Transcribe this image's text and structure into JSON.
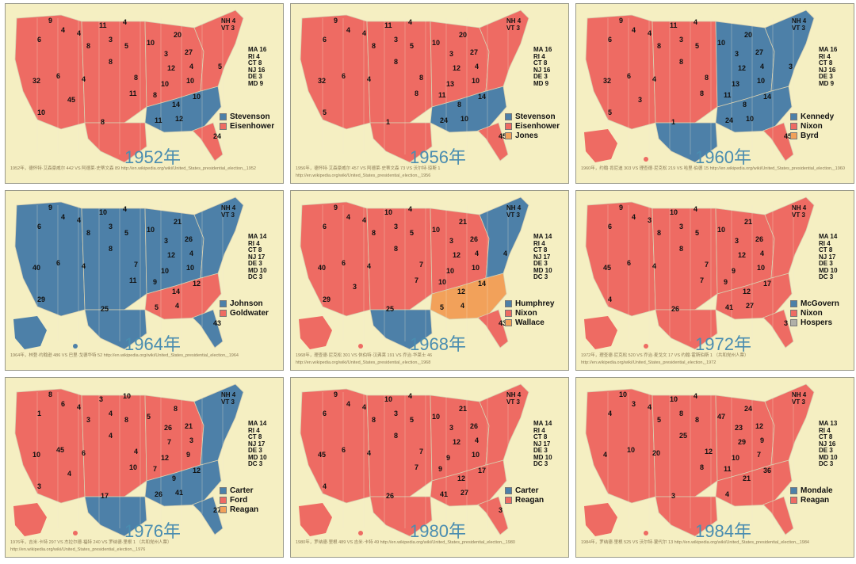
{
  "colors": {
    "dem": "#4d80a8",
    "rep": "#ee6b63",
    "third": "#f2a15a",
    "bg": "#f5efc2"
  },
  "panels": [
    {
      "year": "1952年",
      "legend": [
        [
          "Stevenson",
          "dem"
        ],
        [
          "Eisenhower",
          "rep"
        ]
      ],
      "caption": "1952年，德怀特·艾森豪威尔 442 VS 阿德莱·史蒂文森 89 http://en.wikipedia.org/wiki/United_States_presidential_election,_1952",
      "ne": [
        "NH 4",
        "VT 3"
      ],
      "ne2": [
        "MA 16",
        "RI 4",
        "CT 8",
        "NJ 16",
        "DE 3",
        "MD 9"
      ],
      "states": {
        "west": "rep",
        "plains": "rep",
        "midwest": "rep",
        "south": "dem",
        "texas": "rep",
        "northeast": "rep",
        "florida": "rep",
        "alaska": "none"
      },
      "numbers": [
        "9",
        "6",
        "4",
        "4",
        "11",
        "4",
        "3",
        "8",
        "5",
        "10",
        "32",
        "6",
        "4",
        "8",
        "20",
        "27",
        "3",
        "4",
        "8",
        "12",
        "10",
        "10",
        "11",
        "8",
        "14",
        "10",
        "8",
        "11",
        "12",
        "24",
        "10",
        "45",
        "5"
      ]
    },
    {
      "year": "1956年",
      "legend": [
        [
          "Stevenson",
          "dem"
        ],
        [
          "Eisenhower",
          "rep"
        ],
        [
          "Jones",
          "third"
        ]
      ],
      "caption": "1956年，德怀特·艾森豪威尔 457 VS 阿德莱·史蒂文森 73 VS 沃尔特·琼斯 1 http://en.wikipedia.org/wiki/United_States_presidential_election,_1956",
      "ne": [
        "NH 4",
        "VT 3"
      ],
      "ne2": [
        "MA 16",
        "RI 4",
        "CT 8",
        "NJ 16",
        "DE 3",
        "MD 9"
      ],
      "states": {
        "west": "rep",
        "plains": "rep",
        "midwest": "rep",
        "south": "dem",
        "texas": "rep",
        "northeast": "rep",
        "florida": "rep",
        "alaska": "none"
      },
      "numbers": [
        "9",
        "6",
        "4",
        "4",
        "11",
        "4",
        "3",
        "8",
        "5",
        "10",
        "32",
        "6",
        "4",
        "8",
        "20",
        "27",
        "3",
        "4",
        "8",
        "12",
        "13",
        "10",
        "8",
        "11",
        "8",
        "14",
        "1",
        "24",
        "10",
        "45",
        "5"
      ]
    },
    {
      "year": "1960年",
      "legend": [
        [
          "Kennedy",
          "dem"
        ],
        [
          "Nixon",
          "rep"
        ],
        [
          "Byrd",
          "third"
        ]
      ],
      "caption": "1960年，约翰·肯尼迪 303 VS 理查德·尼克松 219 VS 哈里·伯德 15 http://en.wikipedia.org/wiki/United_States_presidential_election,_1960",
      "ne": [
        "NH 4",
        "VT 3"
      ],
      "ne2": [
        "MA 16",
        "RI 4",
        "CT 8",
        "NJ 16",
        "DE 3",
        "MD 9"
      ],
      "states": {
        "west": "rep",
        "plains": "rep",
        "midwest": "dem",
        "south": "dem",
        "texas": "dem",
        "northeast": "dem",
        "florida": "rep",
        "alaska": "rep"
      },
      "numbers": [
        "9",
        "6",
        "4",
        "4",
        "11",
        "4",
        "3",
        "8",
        "5",
        "10",
        "32",
        "6",
        "4",
        "8",
        "20",
        "27",
        "3",
        "4",
        "8",
        "12",
        "13",
        "10",
        "8",
        "11",
        "8",
        "14",
        "1",
        "24",
        "10",
        "45",
        "5",
        "3",
        "3"
      ]
    },
    {
      "year": "1964年",
      "legend": [
        [
          "Johnson",
          "dem"
        ],
        [
          "Goldwater",
          "rep"
        ]
      ],
      "caption": "1964年，林登·约翰逊 486 VS 巴里·戈德华特 52 http://en.wikipedia.org/wiki/United_States_presidential_election,_1964",
      "ne": [
        "NH 4",
        "VT 3"
      ],
      "ne2": [
        "MA 14",
        "RI 4",
        "CT 8",
        "NJ 17",
        "DE 3",
        "MD 10",
        "DC 3"
      ],
      "states": {
        "west": "dem",
        "plains": "dem",
        "midwest": "dem",
        "south": "rep",
        "texas": "dem",
        "northeast": "dem",
        "florida": "dem",
        "alaska": "dem"
      },
      "numbers": [
        "9",
        "6",
        "4",
        "4",
        "10",
        "4",
        "3",
        "8",
        "5",
        "10",
        "40",
        "6",
        "4",
        "8",
        "21",
        "26",
        "3",
        "4",
        "7",
        "12",
        "10",
        "10",
        "11",
        "9",
        "14",
        "12",
        "25",
        "5",
        "4",
        "43",
        "29"
      ]
    },
    {
      "year": "1968年",
      "legend": [
        [
          "Humphrey",
          "dem"
        ],
        [
          "Nixon",
          "rep"
        ],
        [
          "Wallace",
          "third"
        ]
      ],
      "caption": "1968年，理查德·尼克松 301 VS 休伯特·汉弗莱 191 VS 乔治·华莱士 46 http://en.wikipedia.org/wiki/United_States_presidential_election,_1968",
      "ne": [
        "NH 4",
        "VT 3"
      ],
      "ne2": [
        "MA 14",
        "RI 4",
        "CT 8",
        "NJ 17",
        "DE 3",
        "MD 10",
        "DC 3"
      ],
      "states": {
        "west": "rep",
        "plains": "rep",
        "midwest": "rep",
        "south": "third",
        "texas": "dem",
        "northeast": "dem",
        "florida": "rep",
        "alaska": "rep"
      },
      "numbers": [
        "9",
        "6",
        "4",
        "4",
        "10",
        "4",
        "3",
        "8",
        "5",
        "10",
        "40",
        "6",
        "4",
        "8",
        "21",
        "26",
        "3",
        "4",
        "7",
        "12",
        "10",
        "10",
        "7",
        "10",
        "12",
        "14",
        "25",
        "5",
        "4",
        "43",
        "29",
        "3",
        "4"
      ]
    },
    {
      "year": "1972年",
      "legend": [
        [
          "McGovern",
          "dem"
        ],
        [
          "Nixon",
          "rep"
        ],
        [
          "Hospers",
          "gray"
        ]
      ],
      "caption": "1972年，理查德·尼克松 520 VS 乔治·麦戈文 17 VS 约翰·霍斯珀斯 1 （共和党州人票） http://en.wikipedia.org/wiki/United_States_presidential_election,_1972",
      "ne": [
        "NH 4",
        "VT 3"
      ],
      "ne2": [
        "MA 14",
        "RI 4",
        "CT 8",
        "NJ 17",
        "DE 3",
        "MD 10",
        "DC 3"
      ],
      "states": {
        "west": "rep",
        "plains": "rep",
        "midwest": "rep",
        "south": "rep",
        "texas": "rep",
        "northeast": "rep",
        "florida": "rep",
        "alaska": "rep"
      },
      "numbers": [
        "9",
        "6",
        "4",
        "3",
        "10",
        "4",
        "3",
        "8",
        "5",
        "10",
        "45",
        "6",
        "4",
        "8",
        "21",
        "26",
        "3",
        "4",
        "7",
        "12",
        "9",
        "10",
        "7",
        "9",
        "12",
        "17",
        "26",
        "41",
        "27",
        "3",
        "4"
      ]
    },
    {
      "year": "1976年",
      "legend": [
        [
          "Carter",
          "dem"
        ],
        [
          "Ford",
          "rep"
        ],
        [
          "Reagan",
          "third"
        ]
      ],
      "caption": "1976年，吉米·卡特 297 VS 杰拉尔德·福特 240 VS 罗纳德·里根 1 （共和党州人票） http://en.wikipedia.org/wiki/United_States_presidential_election,_1976",
      "ne": [
        "NH 4",
        "VT 3"
      ],
      "ne2": [
        "MA 14",
        "RI 4",
        "CT 8",
        "NJ 17",
        "DE 3",
        "MD 10",
        "DC 3"
      ],
      "states": {
        "west": "rep",
        "plains": "rep",
        "midwest": "rep",
        "south": "dem",
        "texas": "dem",
        "northeast": "dem",
        "florida": "dem",
        "alaska": "rep"
      },
      "numbers": [
        "8",
        "1",
        "6",
        "4",
        "3",
        "10",
        "4",
        "3",
        "8",
        "5",
        "10",
        "45",
        "6",
        "4",
        "8",
        "21",
        "26",
        "3",
        "4",
        "7",
        "12",
        "9",
        "10",
        "7",
        "9",
        "12",
        "17",
        "26",
        "41",
        "27",
        "3",
        "4"
      ]
    },
    {
      "year": "1980年",
      "legend": [
        [
          "Carter",
          "dem"
        ],
        [
          "Reagan",
          "rep"
        ]
      ],
      "caption": "1980年，罗纳德·里根 489 VS 吉米·卡特 49 http://en.wikipedia.org/wiki/United_States_presidential_election,_1980",
      "ne": [
        "NH 4",
        "VT 3"
      ],
      "ne2": [
        "MA 14",
        "RI 4",
        "CT 8",
        "NJ 17",
        "DE 3",
        "MD 10",
        "DC 3"
      ],
      "states": {
        "west": "rep",
        "plains": "rep",
        "midwest": "rep",
        "south": "rep",
        "texas": "rep",
        "northeast": "rep",
        "florida": "rep",
        "alaska": "rep"
      },
      "numbers": [
        "9",
        "6",
        "4",
        "4",
        "10",
        "4",
        "3",
        "8",
        "5",
        "10",
        "45",
        "6",
        "4",
        "8",
        "21",
        "26",
        "3",
        "4",
        "7",
        "12",
        "9",
        "10",
        "7",
        "9",
        "12",
        "17",
        "26",
        "41",
        "27",
        "3",
        "4"
      ]
    },
    {
      "year": "1984年",
      "legend": [
        [
          "Mondale",
          "dem"
        ],
        [
          "Reagan",
          "rep"
        ]
      ],
      "caption": "1984年，罗纳德·里根 525 VS 沃尔特·蒙代尔 13 http://en.wikipedia.org/wiki/United_States_presidential_election,_1984",
      "ne": [
        "NH 4",
        "VT 3"
      ],
      "ne2": [
        "MA 13",
        "RI 4",
        "CT 8",
        "NJ 16",
        "DE 3",
        "MD 10",
        "DC 3"
      ],
      "states": {
        "west": "rep",
        "plains": "rep",
        "midwest": "rep",
        "south": "rep",
        "texas": "rep",
        "northeast": "rep",
        "florida": "rep",
        "alaska": "rep"
      },
      "numbers": [
        "10",
        "4",
        "3",
        "4",
        "10",
        "4",
        "8",
        "5",
        "8",
        "47",
        "4",
        "10",
        "20",
        "25",
        "24",
        "12",
        "23",
        "9",
        "12",
        "29",
        "10",
        "7",
        "8",
        "11",
        "21",
        "36",
        "3",
        "4"
      ]
    }
  ]
}
